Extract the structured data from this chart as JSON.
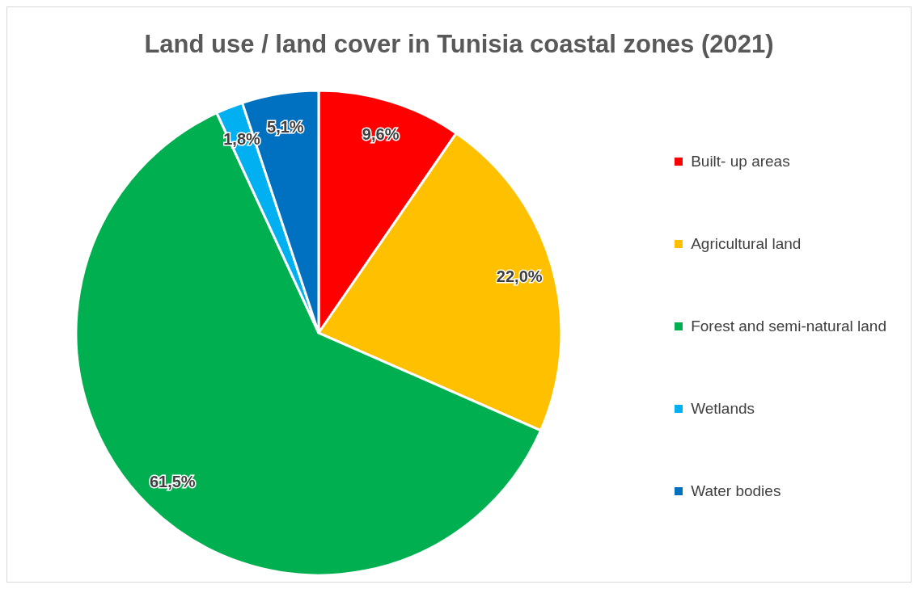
{
  "chart_data": {
    "type": "pie",
    "title": "Land use  / land cover in Tunisia coastal zones (2021)",
    "categories": [
      "Built- up areas",
      "Agricultural land",
      "Forest and semi-natural land",
      "Wetlands",
      "Water bodies"
    ],
    "values": [
      9.6,
      22.0,
      61.5,
      1.8,
      5.1
    ],
    "value_labels": [
      "9,6%",
      "22,0%",
      "61,5%",
      "1,8%",
      "5,1%"
    ],
    "colors": [
      "#ff0000",
      "#ffc000",
      "#00b050",
      "#00b0f0",
      "#0070c0"
    ],
    "legend": "right"
  }
}
